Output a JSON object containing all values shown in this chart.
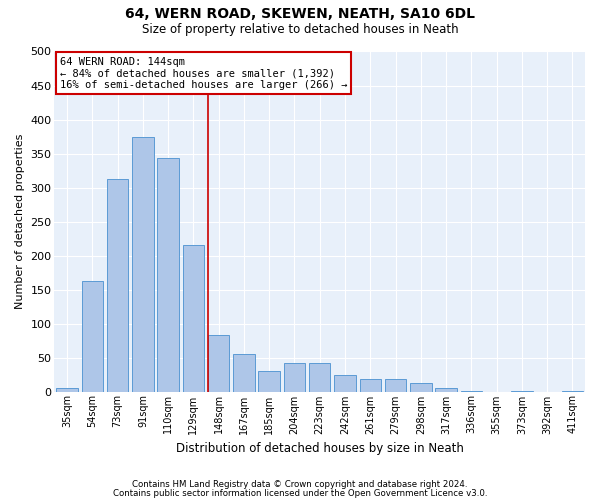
{
  "title1": "64, WERN ROAD, SKEWEN, NEATH, SA10 6DL",
  "title2": "Size of property relative to detached houses in Neath",
  "xlabel": "Distribution of detached houses by size in Neath",
  "ylabel": "Number of detached properties",
  "categories": [
    "35sqm",
    "54sqm",
    "73sqm",
    "91sqm",
    "110sqm",
    "129sqm",
    "148sqm",
    "167sqm",
    "185sqm",
    "204sqm",
    "223sqm",
    "242sqm",
    "261sqm",
    "279sqm",
    "298sqm",
    "317sqm",
    "336sqm",
    "355sqm",
    "373sqm",
    "392sqm",
    "411sqm"
  ],
  "values": [
    5,
    162,
    312,
    375,
    343,
    215,
    83,
    55,
    30,
    42,
    42,
    25,
    18,
    18,
    12,
    5,
    1,
    0,
    1,
    0,
    1
  ],
  "bar_color": "#aec6e8",
  "bar_edgecolor": "#5b9bd5",
  "ylim": [
    0,
    500
  ],
  "yticks": [
    0,
    50,
    100,
    150,
    200,
    250,
    300,
    350,
    400,
    450,
    500
  ],
  "vline_color": "#cc0000",
  "vline_x": 6.0,
  "annotation_text": "64 WERN ROAD: 144sqm\n← 84% of detached houses are smaller (1,392)\n16% of semi-detached houses are larger (266) →",
  "annotation_box_color": "#ffffff",
  "annotation_box_edgecolor": "#cc0000",
  "footer1": "Contains HM Land Registry data © Crown copyright and database right 2024.",
  "footer2": "Contains public sector information licensed under the Open Government Licence v3.0.",
  "plot_bg_color": "#e8f0fa"
}
